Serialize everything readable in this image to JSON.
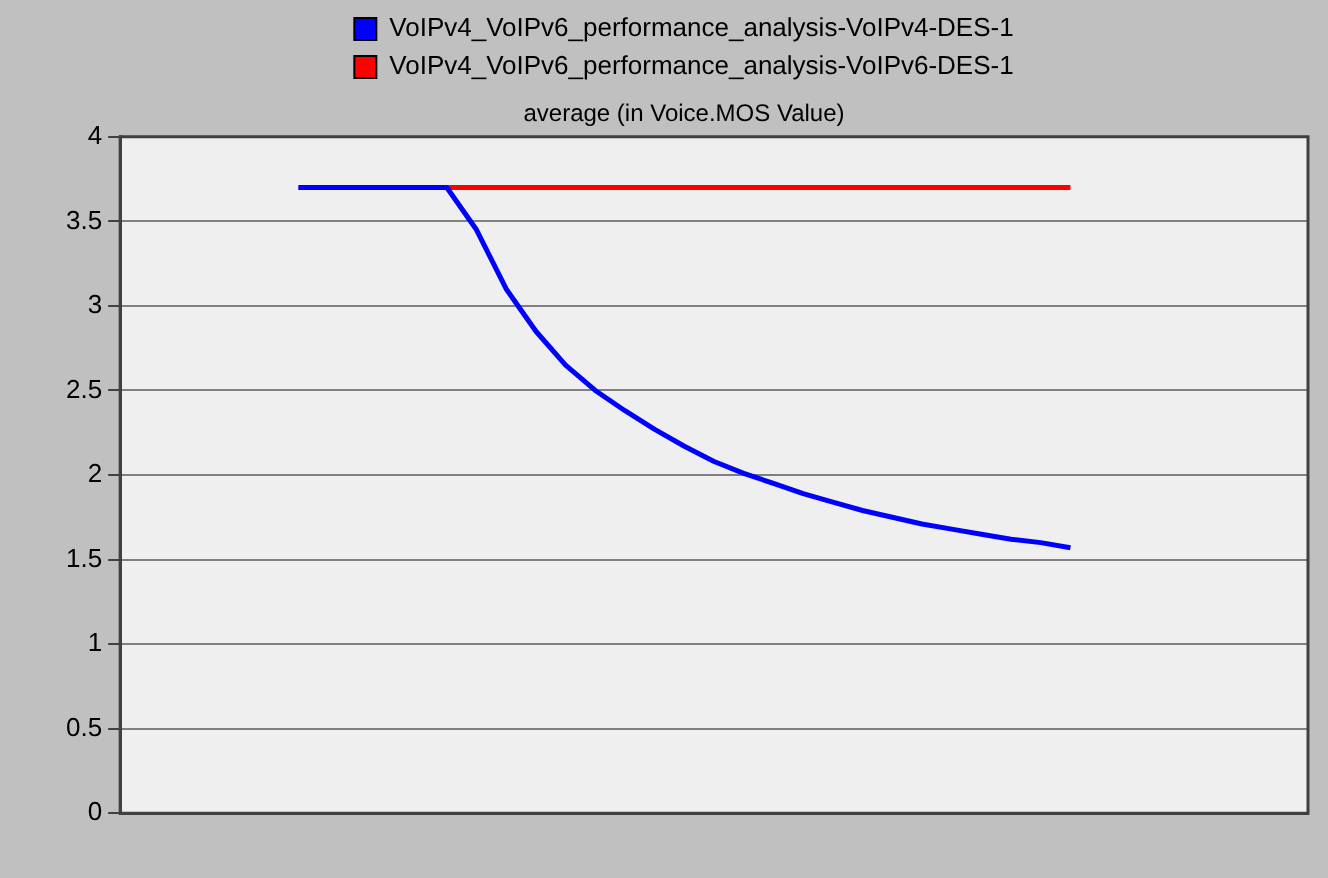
{
  "chart_data": {
    "type": "line",
    "title": "average (in Voice.MOS Value)",
    "categories": [
      null,
      null,
      null,
      null,
      null,
      null,
      null,
      null,
      null,
      null,
      null,
      null,
      null,
      null,
      null,
      null,
      null,
      null,
      null,
      null,
      null,
      null,
      null,
      null,
      null,
      null,
      null,
      null,
      null,
      null,
      null,
      null,
      null,
      null,
      null,
      null,
      null,
      null,
      null,
      null,
      null
    ],
    "series": [
      {
        "name": "VoIPv4_VoIPv6_performance_analysis-VoIPv4-DES-1",
        "color": "#0000ff",
        "values": [
          null,
          null,
          null,
          null,
          null,
          null,
          3.7,
          3.7,
          3.7,
          3.7,
          3.7,
          3.7,
          3.45,
          3.1,
          2.85,
          2.65,
          2.5,
          2.38,
          2.27,
          2.17,
          2.08,
          2.01,
          1.95,
          1.89,
          1.84,
          1.79,
          1.75,
          1.71,
          1.68,
          1.65,
          1.62,
          1.6,
          1.57,
          null,
          null,
          null,
          null,
          null,
          null,
          null,
          null
        ]
      },
      {
        "name": "VoIPv4_VoIPv6_performance_analysis-VoIPv6-DES-1",
        "color": "#ff0000",
        "values": [
          null,
          null,
          null,
          null,
          null,
          null,
          null,
          null,
          null,
          null,
          null,
          3.7,
          3.7,
          3.7,
          3.7,
          3.7,
          3.7,
          3.7,
          3.7,
          3.7,
          3.7,
          3.7,
          3.7,
          3.7,
          3.7,
          3.7,
          3.7,
          3.7,
          3.7,
          3.7,
          3.7,
          3.7,
          3.7,
          null,
          null,
          null,
          null,
          null,
          null,
          null,
          null
        ]
      }
    ],
    "ylim": [
      0,
      4
    ],
    "yticks": [
      0,
      0.5,
      1,
      1.5,
      2,
      2.5,
      3,
      3.5,
      4
    ],
    "grid": "y",
    "legend": "top",
    "marker": "none",
    "line_style": "solid"
  }
}
